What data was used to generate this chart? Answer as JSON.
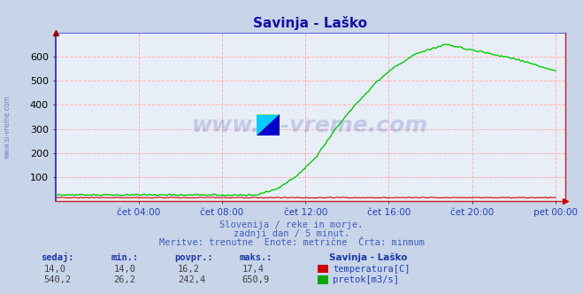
{
  "title": "Savinja - Laško",
  "bg_color": "#c8d4e8",
  "plot_bg_color": "#e8eef8",
  "grid_color": "#ffb0b0",
  "grid_linestyle": "--",
  "yaxis_color": "#2020cc",
  "xaxis_color": "#cc2020",
  "title_color": "#1010aa",
  "watermark_text": "www.si-vreme.com",
  "watermark_color": "#1a2a9a",
  "watermark_alpha": 0.18,
  "left_watermark": "www.si-vreme.com",
  "left_watermark_color": "#3050b0",
  "subtitle1": "Slovenija / reke in morje.",
  "subtitle2": "zadnji dan / 5 minut.",
  "subtitle3": "Meritve: trenutne  Enote: metrične  Črta: minmum",
  "subtitle_color": "#4060c0",
  "table_header_color": "#1a3aaa",
  "table_value_color": "#404040",
  "legend_label_color": "#2040c0",
  "ylim": [
    0,
    700
  ],
  "yticks": [
    100,
    200,
    300,
    400,
    500,
    600
  ],
  "xtick_labels": [
    "čet 04:00",
    "čet 08:00",
    "čet 12:00",
    "čet 16:00",
    "čet 20:00",
    "pet 00:00"
  ],
  "temp_line_color": "#cc0000",
  "flow_line_color": "#00cc00",
  "sedaj_label": "sedaj:",
  "min_label": "min.:",
  "povpr_label": "povpr.:",
  "maks_label": "maks.:",
  "station_label": "Savinja - Laško",
  "temp_row": [
    "14,0",
    "14,0",
    "16,2",
    "17,4"
  ],
  "flow_row": [
    "540,2",
    "26,2",
    "242,4",
    "650,9"
  ],
  "temp_legend": "temperatura[C]",
  "flow_legend": "pretok[m3/s]",
  "temp_swatch_color": "#cc0000",
  "flow_swatch_color": "#00aa00"
}
